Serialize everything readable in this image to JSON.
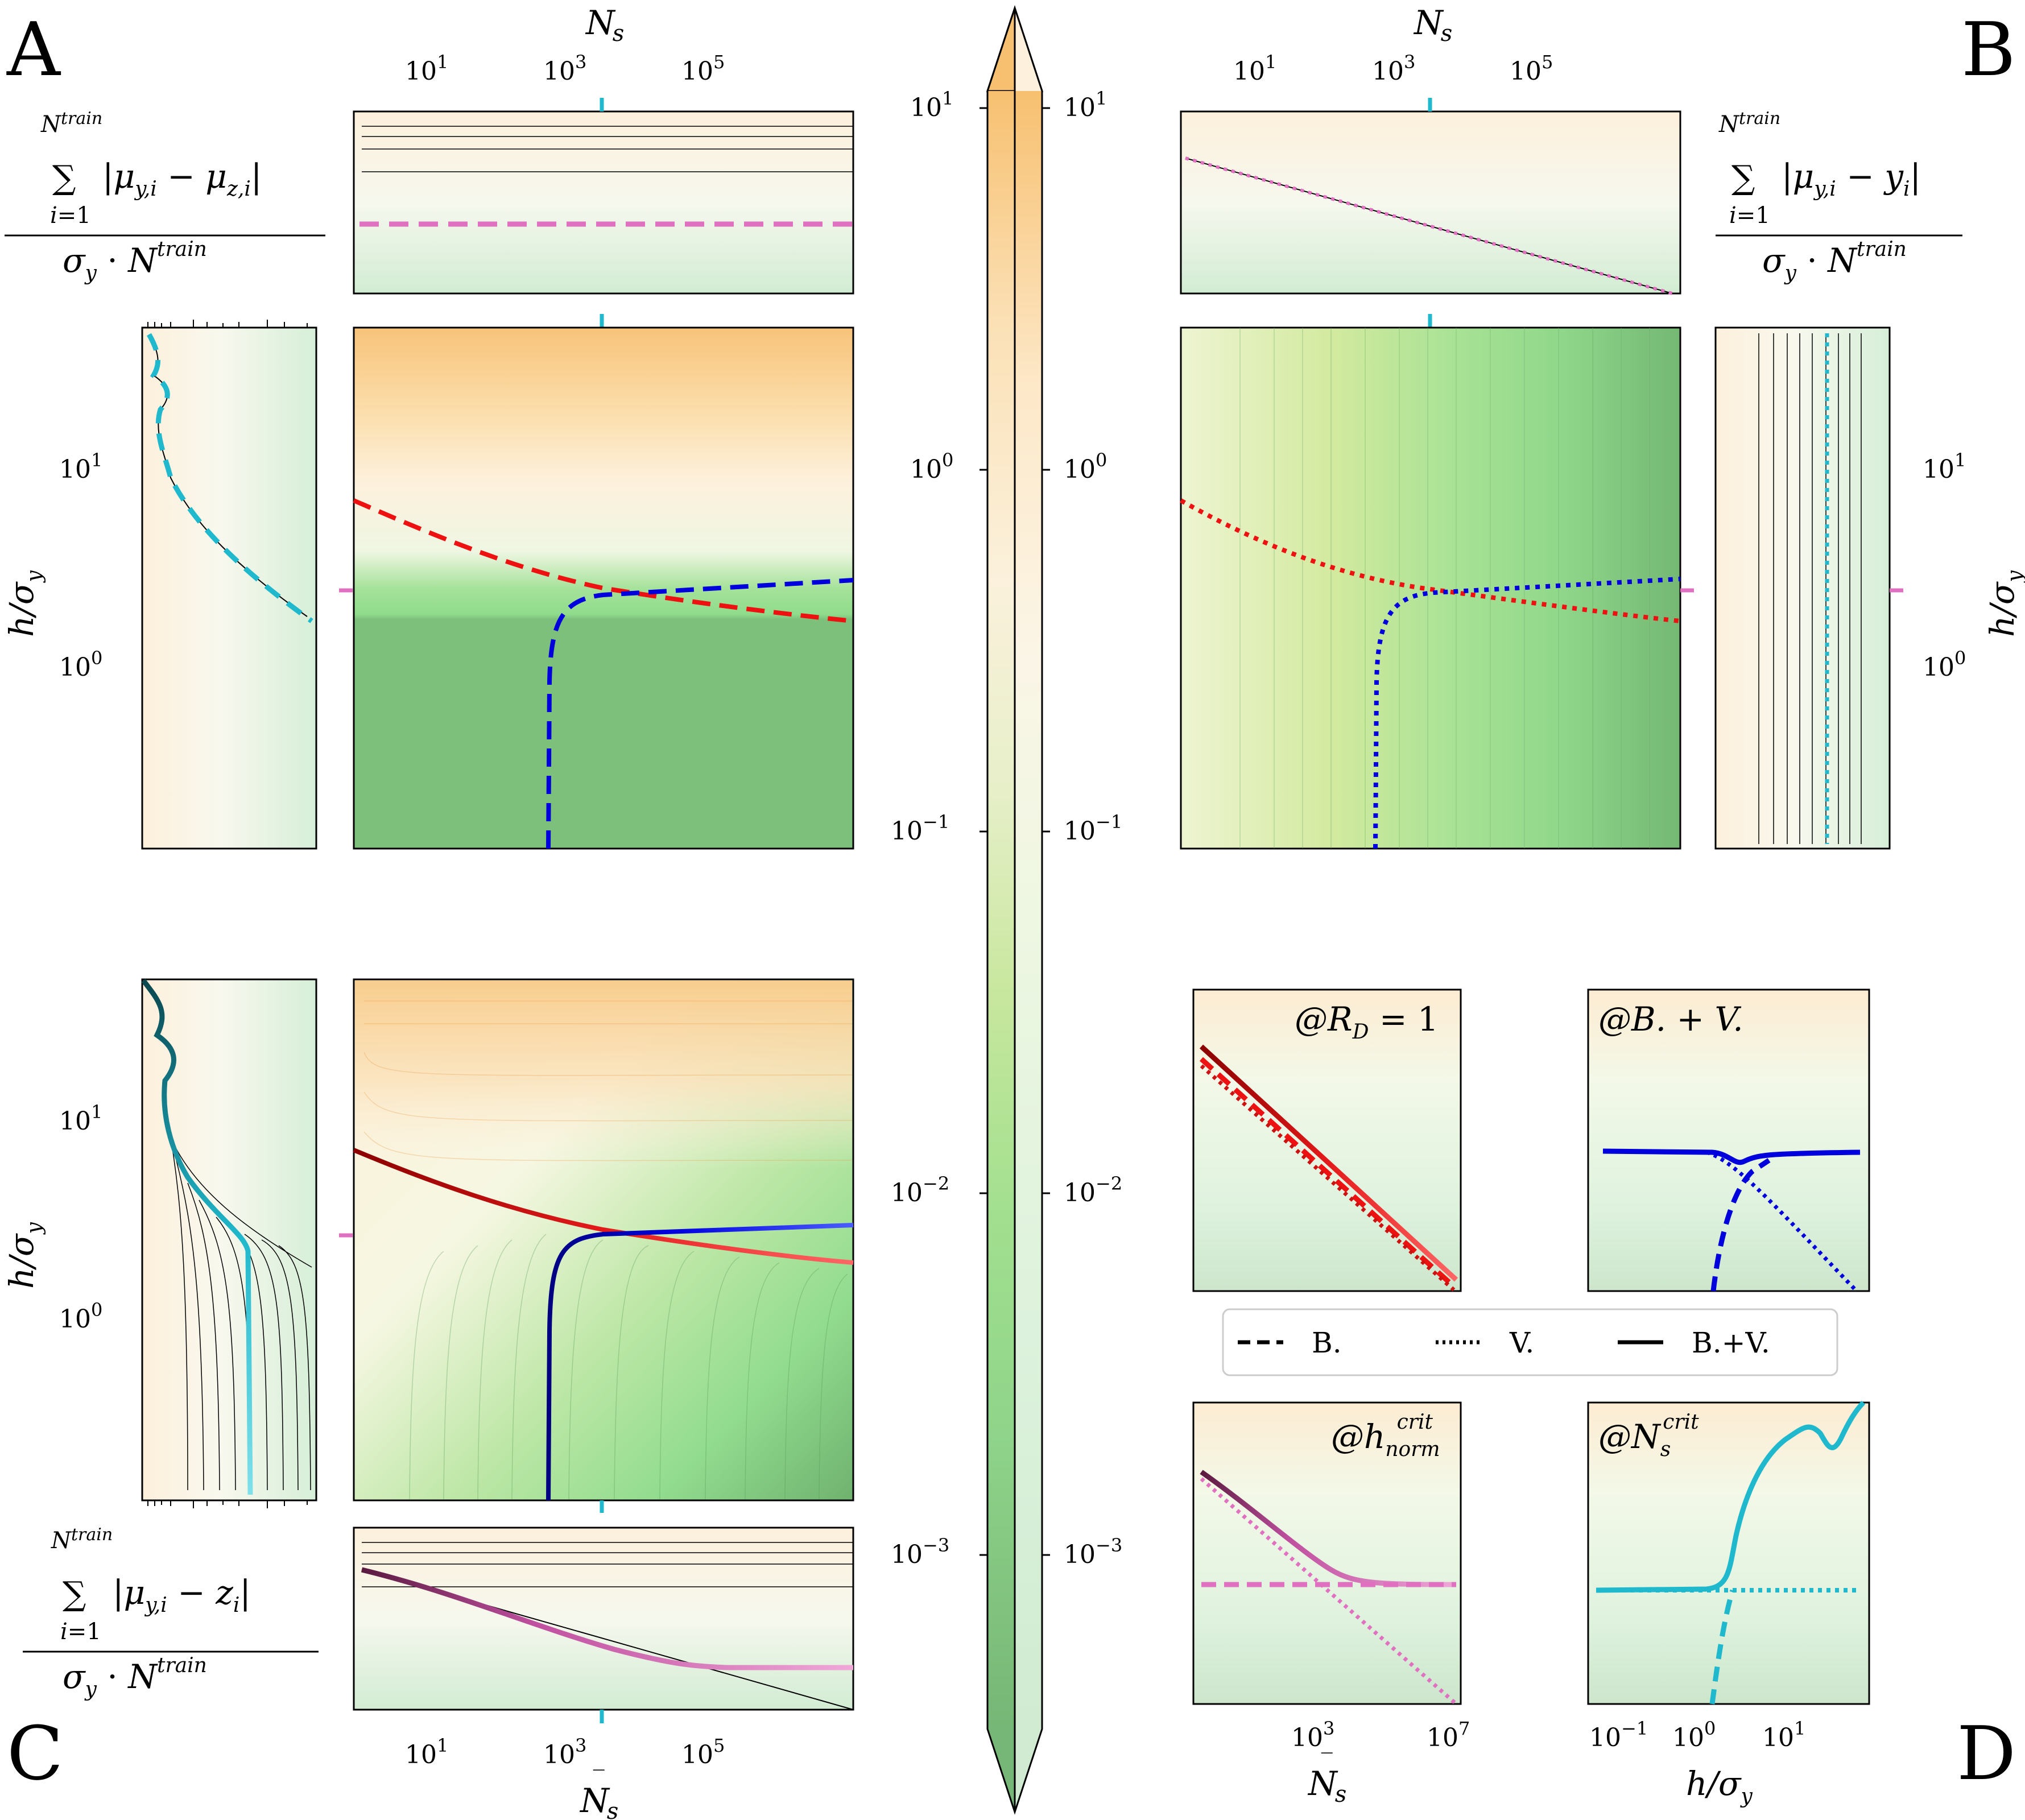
{
  "panel_letters": [
    "A",
    "B",
    "C",
    "D"
  ],
  "colors": {
    "orange_high": "#f7c77f",
    "cream": "#fdf6e8",
    "green_low": "#7cc07c",
    "bright_green": "#8fdc8c",
    "red": "#ee1111",
    "dark_red": "#8b0000",
    "blue": "#0000dd",
    "cyan": "#20b8cc",
    "pink": "#e070c0"
  },
  "labels": {
    "ns_axis": "N̄_s",
    "h_axis": "h/σ_y",
    "A_metric_num": "∑_{i=1}^{N^train} |μ_{y,i} − μ_{z,i}|",
    "B_metric_num": "∑_{i=1}^{N^train} |μ_{y,i} − ȳ_i|",
    "C_metric_num": "∑_{i=1}^{N^train} |μ_{y,i} − z̄_i|",
    "metric_den": "σ_y · N^train"
  },
  "ticks": {
    "ns": [
      "10^1",
      "10^3",
      "10^5"
    ],
    "ns_wide": [
      "10^3",
      "10^7"
    ],
    "h": [
      "10^0",
      "10^1"
    ],
    "h_wide": [
      "10^-1",
      "10^0",
      "10^1"
    ]
  },
  "colorbar": {
    "ticks": [
      "10^1",
      "10^0",
      "10^-1",
      "10^-2",
      "10^-3"
    ],
    "range": [
      0.0003,
      20
    ],
    "scale": "log",
    "extend": "both"
  },
  "insets": {
    "rd1": "@R_D = 1",
    "bv": "@B. + V.",
    "hcrit": "@h_norm^crit",
    "nscrit": "@N̄_s^crit"
  },
  "legend": {
    "items": [
      {
        "label": "B.",
        "style": "dashed"
      },
      {
        "label": "V.",
        "style": "dotted"
      },
      {
        "label": "B.+V.",
        "style": "solid"
      }
    ]
  },
  "chart_data": [
    {
      "panel": "A",
      "type": "heatmap",
      "xscale": "log",
      "yscale": "log",
      "xlim": [
        0.2,
        20000000
      ],
      "ylim": [
        0.13,
        45
      ],
      "series": [
        {
          "name": "B.",
          "color": "red",
          "style": "dashed",
          "points": [
            [
              0.2,
              6.6
            ],
            [
              10,
              4.2
            ],
            [
              1000,
              2.5
            ],
            [
              100000,
              1.95
            ],
            [
              20000000,
              1.65
            ]
          ]
        },
        {
          "name": "B.",
          "color": "blue",
          "style": "dashed",
          "points": [
            [
              300,
              0.13
            ],
            [
              320,
              0.8
            ],
            [
              360,
              1.5
            ],
            [
              500,
              2.05
            ],
            [
              1000,
              2.35
            ],
            [
              100000,
              2.6
            ],
            [
              20000000,
              2.65
            ]
          ]
        }
      ]
    },
    {
      "panel": "B",
      "type": "heatmap",
      "xscale": "log",
      "yscale": "log",
      "xlim": [
        0.2,
        20000000
      ],
      "ylim": [
        0.13,
        45
      ],
      "series": [
        {
          "name": "V.",
          "color": "red",
          "style": "dotted",
          "points": [
            [
              0.2,
              7.5
            ],
            [
              10,
              4.4
            ],
            [
              1000,
              2.6
            ],
            [
              100000,
              2.05
            ],
            [
              20000000,
              1.75
            ]
          ]
        },
        {
          "name": "V.",
          "color": "blue",
          "style": "dotted",
          "points": [
            [
              1000,
              0.13
            ],
            [
              1050,
              0.8
            ],
            [
              1200,
              1.6
            ],
            [
              2000,
              2.2
            ],
            [
              5000,
              2.4
            ],
            [
              100000,
              2.55
            ],
            [
              20000000,
              2.65
            ]
          ]
        }
      ]
    },
    {
      "panel": "C",
      "type": "heatmap",
      "xscale": "log",
      "yscale": "log",
      "xlim": [
        0.2,
        20000000
      ],
      "ylim": [
        0.13,
        45
      ],
      "series": [
        {
          "name": "B.+V.",
          "color": "red",
          "style": "solid",
          "points": [
            [
              0.2,
              6.4
            ],
            [
              10,
              4.2
            ],
            [
              1000,
              2.5
            ],
            [
              100000,
              1.95
            ],
            [
              20000000,
              1.72
            ]
          ]
        },
        {
          "name": "B.+V.",
          "color": "blue",
          "style": "solid",
          "points": [
            [
              300,
              0.13
            ],
            [
              310,
              0.8
            ],
            [
              350,
              1.6
            ],
            [
              500,
              2.2
            ],
            [
              1000,
              2.45
            ],
            [
              100000,
              2.62
            ],
            [
              20000000,
              2.65
            ]
          ]
        }
      ]
    }
  ]
}
